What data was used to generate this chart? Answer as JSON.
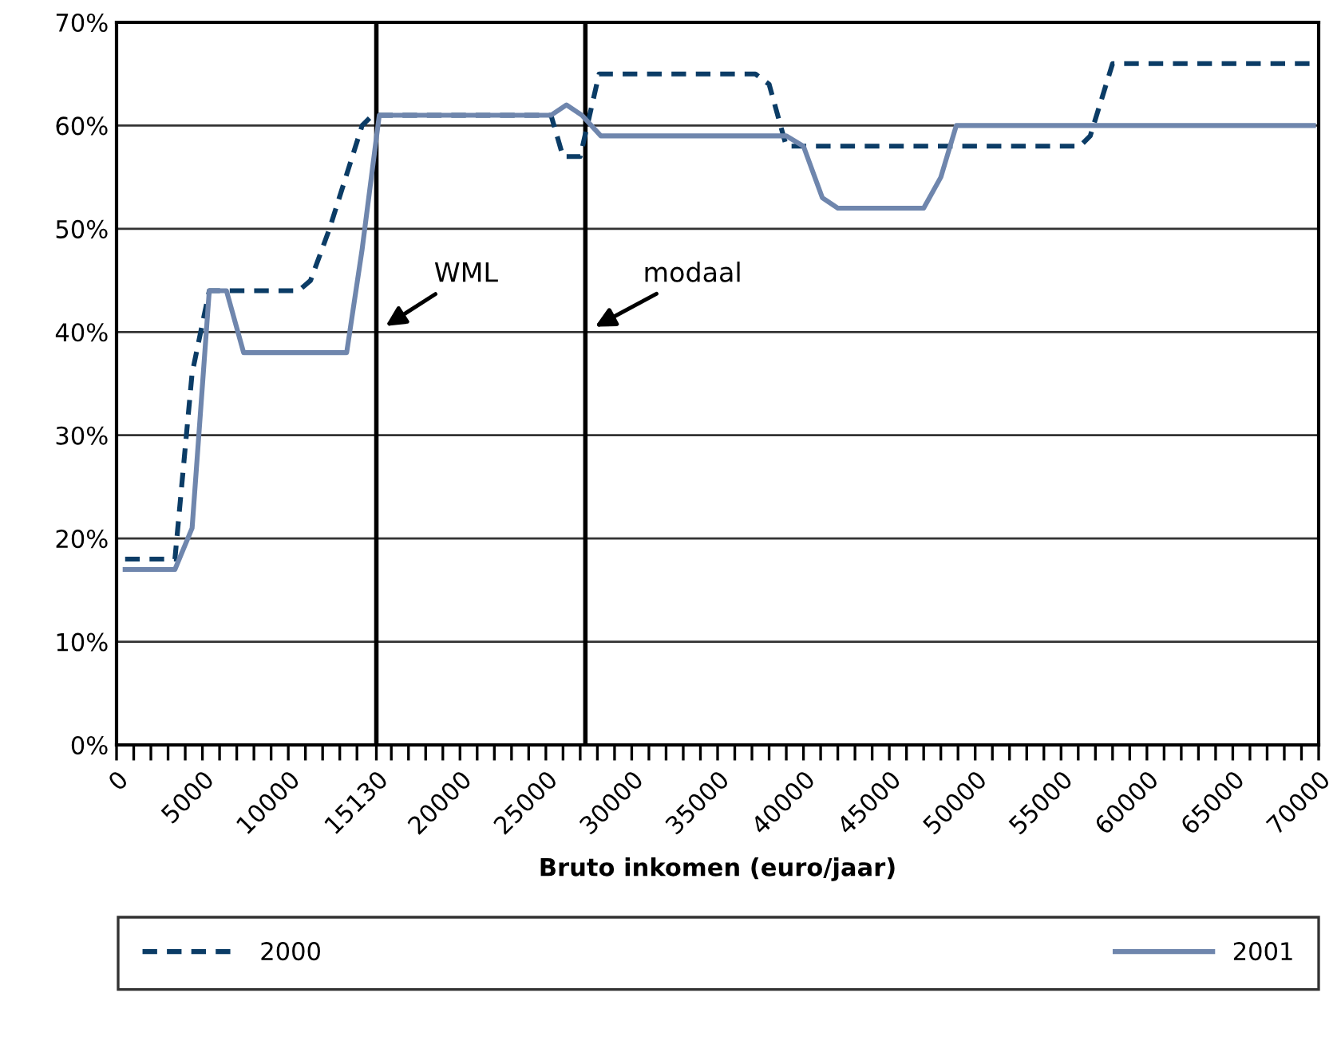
{
  "chart_data": {
    "type": "line",
    "xlabel": "Bruto inkomen (euro/jaar)",
    "series": [
      {
        "name": "2000",
        "color": "#0b3c66",
        "line_style": "dashed",
        "x": [
          500,
          3400,
          4400,
          5400,
          10600,
          11300,
          12400,
          14300,
          14900,
          25300,
          26000,
          27000,
          28100,
          37200,
          38000,
          39000,
          56100,
          56700,
          58000,
          69500
        ],
        "values": [
          18,
          18,
          36,
          44,
          44,
          45,
          50,
          60,
          61,
          61,
          57,
          57,
          65,
          65,
          64,
          58,
          58,
          59,
          66,
          66
        ]
      },
      {
        "name": "2001",
        "color": "#6f86ad",
        "line_style": "solid",
        "x": [
          500,
          3400,
          4400,
          5400,
          6400,
          7400,
          13400,
          14300,
          15300,
          25300,
          26200,
          27100,
          28200,
          39000,
          40000,
          41100,
          42000,
          47000,
          48000,
          48900,
          69700
        ],
        "values": [
          17,
          17,
          21,
          44,
          44,
          38,
          38,
          48,
          61,
          61,
          62,
          61,
          59,
          59,
          58,
          53,
          52,
          52,
          55,
          60,
          60
        ]
      }
    ],
    "xlim": [
      0,
      70000
    ],
    "xticks": [
      {
        "value": 0,
        "label": "0"
      },
      {
        "value": 1000,
        "label": null
      },
      {
        "value": 2000,
        "label": null
      },
      {
        "value": 3000,
        "label": null
      },
      {
        "value": 4000,
        "label": null
      },
      {
        "value": 5000,
        "label": "5000"
      },
      {
        "value": 6000,
        "label": null
      },
      {
        "value": 7000,
        "label": null
      },
      {
        "value": 8000,
        "label": null
      },
      {
        "value": 9000,
        "label": null
      },
      {
        "value": 10000,
        "label": "10000"
      },
      {
        "value": 11000,
        "label": null
      },
      {
        "value": 12000,
        "label": null
      },
      {
        "value": 13000,
        "label": null
      },
      {
        "value": 14000,
        "label": null
      },
      {
        "value": 15130,
        "label": "15130"
      },
      {
        "value": 16000,
        "label": null
      },
      {
        "value": 17000,
        "label": null
      },
      {
        "value": 18000,
        "label": null
      },
      {
        "value": 19000,
        "label": null
      },
      {
        "value": 20000,
        "label": "20000"
      },
      {
        "value": 21000,
        "label": null
      },
      {
        "value": 22000,
        "label": null
      },
      {
        "value": 23000,
        "label": null
      },
      {
        "value": 24000,
        "label": null
      },
      {
        "value": 25000,
        "label": "25000"
      },
      {
        "value": 26000,
        "label": null
      },
      {
        "value": 27000,
        "label": null
      },
      {
        "value": 28000,
        "label": null
      },
      {
        "value": 29000,
        "label": null
      },
      {
        "value": 30000,
        "label": "30000"
      },
      {
        "value": 31000,
        "label": null
      },
      {
        "value": 32000,
        "label": null
      },
      {
        "value": 33000,
        "label": null
      },
      {
        "value": 34000,
        "label": null
      },
      {
        "value": 35000,
        "label": "35000"
      },
      {
        "value": 36000,
        "label": null
      },
      {
        "value": 37000,
        "label": null
      },
      {
        "value": 38000,
        "label": null
      },
      {
        "value": 39000,
        "label": null
      },
      {
        "value": 40000,
        "label": "40000"
      },
      {
        "value": 41000,
        "label": null
      },
      {
        "value": 42000,
        "label": null
      },
      {
        "value": 43000,
        "label": null
      },
      {
        "value": 44000,
        "label": null
      },
      {
        "value": 45000,
        "label": "45000"
      },
      {
        "value": 46000,
        "label": null
      },
      {
        "value": 47000,
        "label": null
      },
      {
        "value": 48000,
        "label": null
      },
      {
        "value": 49000,
        "label": null
      },
      {
        "value": 50000,
        "label": "50000"
      },
      {
        "value": 51000,
        "label": null
      },
      {
        "value": 52000,
        "label": null
      },
      {
        "value": 53000,
        "label": null
      },
      {
        "value": 54000,
        "label": null
      },
      {
        "value": 55000,
        "label": "55000"
      },
      {
        "value": 56000,
        "label": null
      },
      {
        "value": 57000,
        "label": null
      },
      {
        "value": 58000,
        "label": null
      },
      {
        "value": 59000,
        "label": null
      },
      {
        "value": 60000,
        "label": "60000"
      },
      {
        "value": 61000,
        "label": null
      },
      {
        "value": 62000,
        "label": null
      },
      {
        "value": 63000,
        "label": null
      },
      {
        "value": 64000,
        "label": null
      },
      {
        "value": 65000,
        "label": "65000"
      },
      {
        "value": 66000,
        "label": null
      },
      {
        "value": 67000,
        "label": null
      },
      {
        "value": 68000,
        "label": null
      },
      {
        "value": 69000,
        "label": null
      },
      {
        "value": 70000,
        "label": "70000"
      }
    ],
    "ylim": [
      0,
      70
    ],
    "yticks": [
      {
        "value": 0,
        "label": "0%"
      },
      {
        "value": 10,
        "label": "10%"
      },
      {
        "value": 20,
        "label": "20%"
      },
      {
        "value": 30,
        "label": "30%"
      },
      {
        "value": 40,
        "label": "40%"
      },
      {
        "value": 50,
        "label": "50%"
      },
      {
        "value": 60,
        "label": "60%"
      },
      {
        "value": 70,
        "label": "70%"
      }
    ],
    "grid": "y",
    "legend": "bottom",
    "ref_lines": [
      {
        "axis": "x",
        "value": 15130,
        "color": "#000000"
      },
      {
        "axis": "x",
        "value": 27300,
        "color": "#000000"
      }
    ],
    "annotations": [
      {
        "text": "WML",
        "x": 15130,
        "y": 40
      },
      {
        "text": "modaal",
        "x": 27300,
        "y": 40
      }
    ]
  }
}
